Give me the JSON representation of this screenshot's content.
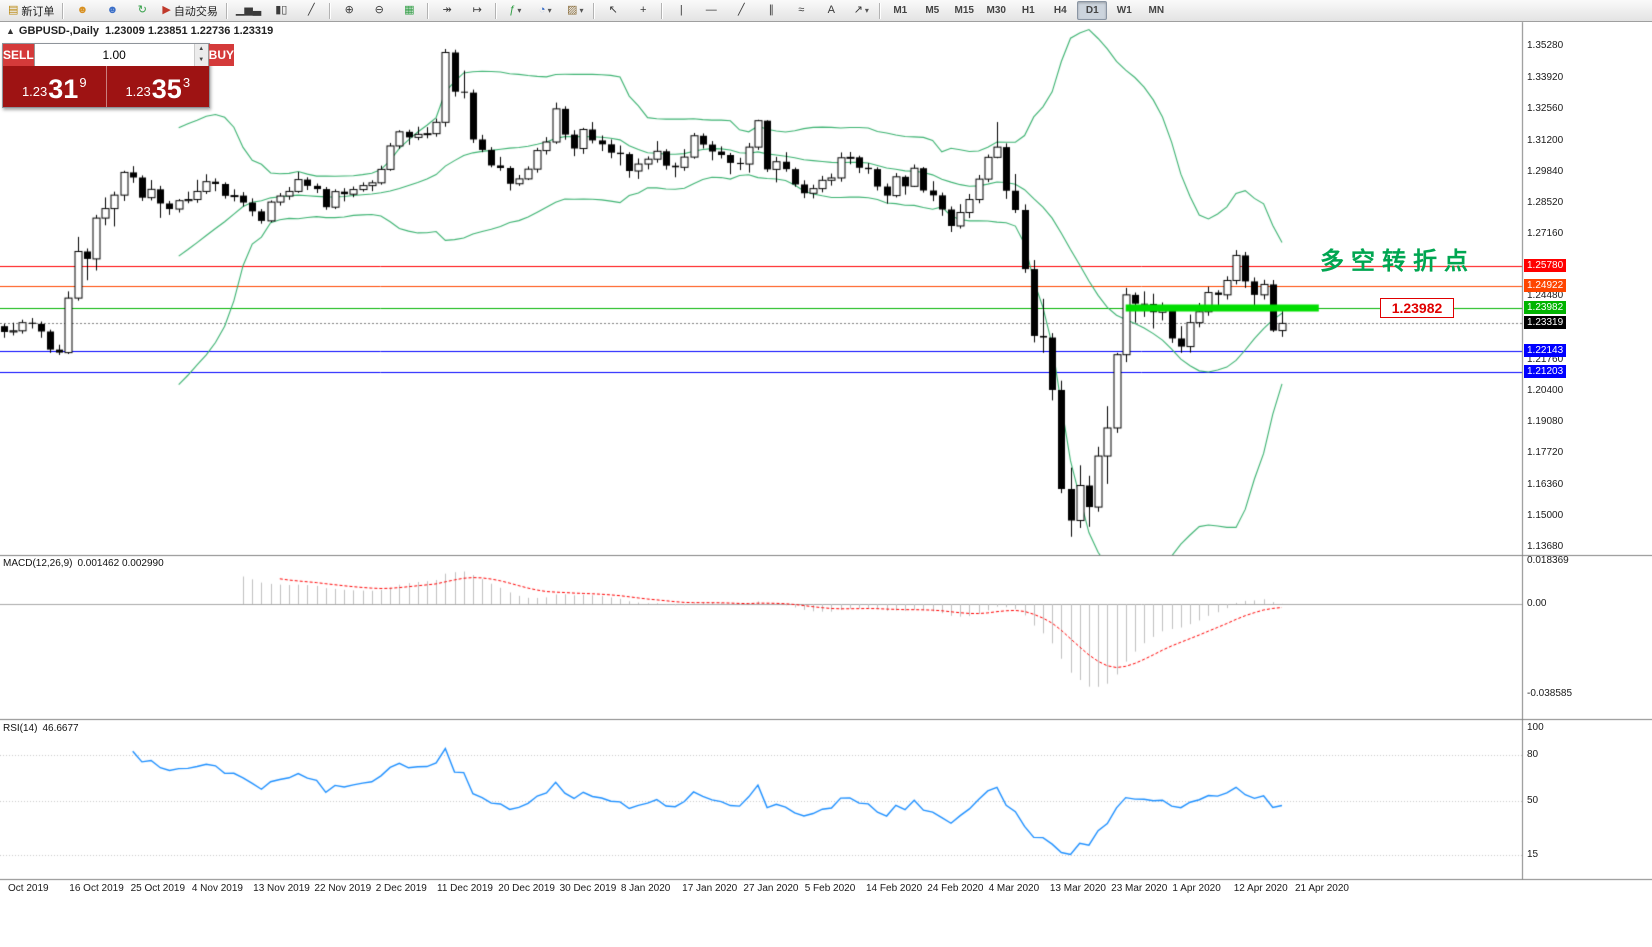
{
  "colors": {
    "button_red": "#d43a3a",
    "panel_red": "#9e1313",
    "bollinger_green": "#3cb371",
    "rsi_blue": "#1e90ff",
    "macd_signal_red": "#ff0000",
    "macd_histogram_silver": "#c0c0c0",
    "candle_up": "#ffffff",
    "candle_down": "#000000"
  },
  "toolbar": {
    "items": [
      {
        "name": "new-order-button",
        "icon": "order-ticket-icon",
        "glyph": "▤",
        "color": "#b8860b",
        "label": "新订单"
      },
      {
        "sep": true
      },
      {
        "name": "mql5-community-button",
        "icon": "community-icon",
        "glyph": "☻",
        "color": "#d89020"
      },
      {
        "name": "profile-button",
        "icon": "profile-icon",
        "glyph": "☻",
        "color": "#3a6ec8"
      },
      {
        "name": "data-window-button",
        "icon": "refresh-icon",
        "glyph": "↻",
        "color": "#2f9e44"
      },
      {
        "name": "autotrading-button",
        "icon": "autotrading-play-icon",
        "glyph": "▶",
        "color": "#c0392b",
        "label": "自动交易"
      },
      {
        "sep": true
      },
      {
        "name": "bar-chart-button",
        "icon": "bar-chart-icon",
        "glyph": "▁▅▃",
        "color": "#3a3a3a"
      },
      {
        "name": "candlestick-chart-button",
        "icon": "candlestick-icon",
        "glyph": "▮▯",
        "color": "#3a3a3a"
      },
      {
        "name": "line-chart-button",
        "icon": "line-chart-icon",
        "glyph": "╱",
        "color": "#3a3a3a"
      },
      {
        "sep": true
      },
      {
        "name": "zoom-in-button",
        "icon": "zoom-in-icon",
        "glyph": "⊕",
        "color": "#3a3a3a"
      },
      {
        "name": "zoom-out-button",
        "icon": "zoom-out-icon",
        "glyph": "⊖",
        "color": "#3a3a3a"
      },
      {
        "name": "tile-windows-button",
        "icon": "tile-windows-icon",
        "glyph": "▦",
        "color": "#2f9e44"
      },
      {
        "sep": true
      },
      {
        "name": "auto-scroll-button",
        "icon": "auto-scroll-icon",
        "glyph": "↠",
        "color": "#3a3a3a"
      },
      {
        "name": "chart-shift-button",
        "icon": "chart-shift-icon",
        "glyph": "↦",
        "color": "#3a3a3a"
      },
      {
        "sep": true
      },
      {
        "name": "indicators-button",
        "icon": "indicators-fx-icon",
        "glyph": "ƒ",
        "color": "#2f9e44",
        "caret": true
      },
      {
        "name": "periods-button",
        "icon": "clock-icon",
        "glyph": "◔",
        "color": "#3a6ec8",
        "caret": true
      },
      {
        "name": "templates-button",
        "icon": "template-icon",
        "glyph": "▨",
        "color": "#8a6d3b",
        "caret": true
      },
      {
        "sep": true
      },
      {
        "name": "cursor-button",
        "icon": "cursor-icon",
        "glyph": "↖",
        "color": "#3a3a3a"
      },
      {
        "name": "crosshair-button",
        "icon": "crosshair-icon",
        "glyph": "+",
        "color": "#3a3a3a"
      },
      {
        "sep": true
      },
      {
        "name": "vertical-line-button",
        "icon": "vertical-line-icon",
        "glyph": "|",
        "color": "#3a3a3a"
      },
      {
        "name": "horizontal-line-button",
        "icon": "horizontal-line-icon",
        "glyph": "―",
        "color": "#3a3a3a"
      },
      {
        "name": "trendline-button",
        "icon": "trendline-icon",
        "glyph": "╱",
        "color": "#3a3a3a"
      },
      {
        "name": "channel-button",
        "icon": "equidistant-channel-icon",
        "glyph": "∥",
        "color": "#3a3a3a"
      },
      {
        "name": "fibonacci-button",
        "icon": "fibonacci-icon",
        "glyph": "≈",
        "color": "#3a3a3a"
      },
      {
        "name": "text-label-button",
        "icon": "text-icon",
        "glyph": "A",
        "color": "#3a3a3a"
      },
      {
        "name": "arrow-objects-button",
        "icon": "arrow-objects-icon",
        "glyph": "↗",
        "color": "#3a3a3a",
        "caret": true
      },
      {
        "sep": true
      }
    ],
    "timeframes": [
      "M1",
      "M5",
      "M15",
      "M30",
      "H1",
      "H4",
      "D1",
      "W1",
      "MN"
    ],
    "active_timeframe": "D1"
  },
  "chart": {
    "toggle": "▲",
    "symbol": "GBPUSD-,Daily",
    "ohlc": "1.23009 1.23851 1.22736 1.23319"
  },
  "one_click": {
    "sell_label": "SELL",
    "buy_label": "BUY",
    "volume": "1.00",
    "sell": {
      "base": "1.23",
      "pips": "31",
      "pt": "9"
    },
    "buy": {
      "base": "1.23",
      "pips": "35",
      "pt": "3"
    }
  },
  "price_axis": {
    "ticks": [
      "1.35280",
      "1.33920",
      "1.32560",
      "1.31200",
      "1.29840",
      "1.28520",
      "1.27160",
      "1.24480",
      "1.21760",
      "1.20400",
      "1.19080",
      "1.17720",
      "1.16360",
      "1.15000",
      "1.13680"
    ],
    "levels": [
      {
        "label": "1.25780",
        "color": "#ff0000",
        "style": "solid"
      },
      {
        "label": "1.24922",
        "color": "#ff4500",
        "style": "solid"
      },
      {
        "label": "1.23982",
        "color": "#00b400",
        "style": "solid"
      },
      {
        "label": "1.23319",
        "color": "#000000",
        "style": "dot",
        "line_color": "#808080"
      },
      {
        "label": "1.22143",
        "color": "#0000ff",
        "style": "solid"
      },
      {
        "label": "1.21203",
        "color": "#0000ff",
        "style": "solid"
      }
    ]
  },
  "date_axis": [
    "Oct 2019",
    "16 Oct 2019",
    "25 Oct 2019",
    "4 Nov 2019",
    "13 Nov 2019",
    "22 Nov 2019",
    "2 Dec 2019",
    "11 Dec 2019",
    "20 Dec 2019",
    "30 Dec 2019",
    "8 Jan 2020",
    "17 Jan 2020",
    "27 Jan 2020",
    "5 Feb 2020",
    "14 Feb 2020",
    "24 Feb 2020",
    "4 Mar 2020",
    "13 Mar 2020",
    "23 Mar 2020",
    "1 Apr 2020",
    "12 Apr 2020",
    "21 Apr 2020"
  ],
  "panes": {
    "macd": {
      "label": "MACD(12,26,9)",
      "values": "0.001462 0.002990",
      "axis": [
        "0.018369",
        "0.00",
        "-0.038585"
      ]
    },
    "rsi": {
      "label": "RSI(14)",
      "value": "46.6677",
      "axis": [
        "100",
        "80",
        "50",
        "15"
      ],
      "levels": [
        80,
        50,
        15
      ]
    }
  },
  "objects": {
    "support_segment": {
      "price": 1.23982,
      "from_bar": 122,
      "to_bar": 143,
      "color": "#00dd00",
      "width": 7
    },
    "annotation": {
      "text": "多空转折点",
      "color": "#00a651"
    },
    "callout": {
      "text": "1.23982",
      "color": "#e00000"
    }
  },
  "chart_data": {
    "type": "candlestick",
    "symbol": "GBPUSD",
    "period": "Daily",
    "x_range": [
      "Oct 2019",
      "21 Apr 2020"
    ],
    "price_range": [
      1.1342,
      1.3597
    ],
    "last_ohlc": {
      "open": 1.23009,
      "high": 1.23851,
      "low": 1.22736,
      "close": 1.23319
    },
    "indicators": {
      "bollinger": {
        "period": 20,
        "deviation": 2,
        "color": "#3cb371"
      },
      "macd": {
        "fast": 12,
        "slow": 26,
        "signal": 9,
        "current_main": 0.001462,
        "current_signal": 0.00299,
        "scale_max": 0.018369,
        "scale_min": -0.038585
      },
      "rsi": {
        "period": 14,
        "current": 46.6677
      }
    },
    "candles": [
      [
        1.232,
        1.233,
        1.227,
        1.2295
      ],
      [
        1.2295,
        1.2335,
        1.228,
        1.23
      ],
      [
        1.23,
        1.2348,
        1.2288,
        1.2335
      ],
      [
        1.2335,
        1.2355,
        1.231,
        1.233
      ],
      [
        1.233,
        1.234,
        1.227,
        1.2297
      ],
      [
        1.2297,
        1.2305,
        1.2205,
        1.2219
      ],
      [
        1.2219,
        1.224,
        1.2196,
        1.2206
      ],
      [
        1.2206,
        1.247,
        1.22,
        1.2441
      ],
      [
        1.2441,
        1.2705,
        1.243,
        1.2642
      ],
      [
        1.2642,
        1.2655,
        1.2518,
        1.261
      ],
      [
        1.261,
        1.28,
        1.256,
        1.2786
      ],
      [
        1.2786,
        1.2875,
        1.2755,
        1.2827
      ],
      [
        1.2827,
        1.29,
        1.275,
        1.2885
      ],
      [
        1.2885,
        1.299,
        1.286,
        1.2983
      ],
      [
        1.2983,
        1.301,
        1.2938,
        1.2961
      ],
      [
        1.2961,
        1.297,
        1.286,
        1.2874
      ],
      [
        1.2874,
        1.295,
        1.2862,
        1.291
      ],
      [
        1.291,
        1.2925,
        1.2787,
        1.2849
      ],
      [
        1.2849,
        1.286,
        1.28,
        1.2825
      ],
      [
        1.2825,
        1.2868,
        1.281,
        1.2861
      ],
      [
        1.2861,
        1.29,
        1.285,
        1.2866
      ],
      [
        1.2866,
        1.2951,
        1.2852,
        1.2901
      ],
      [
        1.2901,
        1.2975,
        1.289,
        1.2943
      ],
      [
        1.2943,
        1.2957,
        1.2902,
        1.2933
      ],
      [
        1.2933,
        1.294,
        1.287,
        1.2882
      ],
      [
        1.2882,
        1.291,
        1.2858,
        1.2883
      ],
      [
        1.2883,
        1.2898,
        1.2836,
        1.2853
      ],
      [
        1.2853,
        1.2871,
        1.2794,
        1.2815
      ],
      [
        1.2815,
        1.2825,
        1.2762,
        1.2774
      ],
      [
        1.2774,
        1.2862,
        1.2768,
        1.2855
      ],
      [
        1.2855,
        1.2894,
        1.284,
        1.2881
      ],
      [
        1.2881,
        1.292,
        1.2865,
        1.2901
      ],
      [
        1.2901,
        1.2985,
        1.2895,
        1.2952
      ],
      [
        1.2952,
        1.2962,
        1.2907,
        1.2925
      ],
      [
        1.2925,
        1.2935,
        1.2894,
        1.2911
      ],
      [
        1.2911,
        1.292,
        1.2822,
        1.2833
      ],
      [
        1.2833,
        1.291,
        1.2825,
        1.29
      ],
      [
        1.29,
        1.2915,
        1.2858,
        1.2889
      ],
      [
        1.2889,
        1.2922,
        1.2876,
        1.2909
      ],
      [
        1.2909,
        1.294,
        1.29,
        1.2926
      ],
      [
        1.2926,
        1.2949,
        1.2902,
        1.2938
      ],
      [
        1.2938,
        1.3012,
        1.293,
        1.2996
      ],
      [
        1.2996,
        1.311,
        1.299,
        1.3097
      ],
      [
        1.3097,
        1.3165,
        1.3085,
        1.3158
      ],
      [
        1.3158,
        1.3167,
        1.3102,
        1.3134
      ],
      [
        1.3134,
        1.318,
        1.3122,
        1.3147
      ],
      [
        1.3147,
        1.3178,
        1.313,
        1.315
      ],
      [
        1.315,
        1.3215,
        1.3137,
        1.3199
      ],
      [
        1.3199,
        1.3515,
        1.318,
        1.35
      ],
      [
        1.35,
        1.3512,
        1.331,
        1.3331
      ],
      [
        1.3331,
        1.3422,
        1.3302,
        1.3327
      ],
      [
        1.3327,
        1.334,
        1.311,
        1.3125
      ],
      [
        1.3125,
        1.3145,
        1.307,
        1.308
      ],
      [
        1.308,
        1.3092,
        1.3005,
        1.3013
      ],
      [
        1.3013,
        1.305,
        1.299,
        1.3002
      ],
      [
        1.3002,
        1.301,
        1.2905,
        1.2934
      ],
      [
        1.2934,
        1.2972,
        1.2925,
        1.2955
      ],
      [
        1.2955,
        1.3009,
        1.295,
        1.2997
      ],
      [
        1.2997,
        1.3089,
        1.2982,
        1.3077
      ],
      [
        1.3077,
        1.3135,
        1.306,
        1.3114
      ],
      [
        1.3114,
        1.3284,
        1.3106,
        1.3257
      ],
      [
        1.3257,
        1.3268,
        1.3124,
        1.3146
      ],
      [
        1.3146,
        1.3165,
        1.3053,
        1.3086
      ],
      [
        1.3086,
        1.3175,
        1.3063,
        1.3168
      ],
      [
        1.3168,
        1.32,
        1.3108,
        1.3121
      ],
      [
        1.3121,
        1.3142,
        1.3075,
        1.3104
      ],
      [
        1.3104,
        1.3125,
        1.3044,
        1.3068
      ],
      [
        1.3068,
        1.3099,
        1.3013,
        1.3062
      ],
      [
        1.3062,
        1.307,
        1.296,
        1.2989
      ],
      [
        1.2989,
        1.3043,
        1.2955,
        1.3019
      ],
      [
        1.3019,
        1.3052,
        1.2996,
        1.304
      ],
      [
        1.304,
        1.3118,
        1.3025,
        1.3074
      ],
      [
        1.3074,
        1.3083,
        1.2995,
        1.3012
      ],
      [
        1.3012,
        1.3025,
        1.2962,
        1.3005
      ],
      [
        1.3005,
        1.3083,
        1.299,
        1.3049
      ],
      [
        1.3049,
        1.3153,
        1.3042,
        1.3141
      ],
      [
        1.3141,
        1.3151,
        1.3086,
        1.3103
      ],
      [
        1.3103,
        1.3118,
        1.3035,
        1.3073
      ],
      [
        1.3073,
        1.3095,
        1.3043,
        1.3058
      ],
      [
        1.3058,
        1.3067,
        1.2975,
        1.3024
      ],
      [
        1.3024,
        1.3046,
        1.2993,
        1.3019
      ],
      [
        1.3019,
        1.311,
        1.2982,
        1.3092
      ],
      [
        1.3092,
        1.321,
        1.308,
        1.3206
      ],
      [
        1.3206,
        1.3208,
        1.2985,
        1.2996
      ],
      [
        1.2996,
        1.305,
        1.294,
        1.3029
      ],
      [
        1.3029,
        1.307,
        1.2986,
        1.2997
      ],
      [
        1.2997,
        1.3004,
        1.2921,
        1.2931
      ],
      [
        1.2931,
        1.2949,
        1.2872,
        1.2893
      ],
      [
        1.2893,
        1.293,
        1.2871,
        1.2913
      ],
      [
        1.2913,
        1.2968,
        1.2897,
        1.2949
      ],
      [
        1.2949,
        1.2978,
        1.2926,
        1.2959
      ],
      [
        1.2959,
        1.3069,
        1.2943,
        1.3046
      ],
      [
        1.3046,
        1.3071,
        1.3018,
        1.3048
      ],
      [
        1.3048,
        1.3055,
        1.298,
        1.3003
      ],
      [
        1.3003,
        1.3023,
        1.2977,
        1.2997
      ],
      [
        1.2997,
        1.3005,
        1.2905,
        1.2922
      ],
      [
        1.2922,
        1.2935,
        1.2848,
        1.2883
      ],
      [
        1.2883,
        1.298,
        1.2875,
        1.2964
      ],
      [
        1.2964,
        1.297,
        1.2887,
        1.2923
      ],
      [
        1.2923,
        1.3017,
        1.292,
        1.3001
      ],
      [
        1.3001,
        1.3006,
        1.2896,
        1.2905
      ],
      [
        1.2905,
        1.2945,
        1.2859,
        1.2884
      ],
      [
        1.2884,
        1.2896,
        1.2796,
        1.2823
      ],
      [
        1.2823,
        1.2836,
        1.2726,
        1.2752
      ],
      [
        1.2752,
        1.2846,
        1.2741,
        1.281
      ],
      [
        1.281,
        1.289,
        1.2786,
        1.2866
      ],
      [
        1.2866,
        1.2972,
        1.285,
        1.2954
      ],
      [
        1.2954,
        1.306,
        1.2941,
        1.3048
      ],
      [
        1.3048,
        1.32,
        1.3044,
        1.3092
      ],
      [
        1.3092,
        1.3108,
        1.2869,
        1.2904
      ],
      [
        1.2904,
        1.2976,
        1.2808,
        1.2821
      ],
      [
        1.2821,
        1.2845,
        1.255,
        1.2566
      ],
      [
        1.2566,
        1.2605,
        1.225,
        1.2278
      ],
      [
        1.2278,
        1.2438,
        1.2205,
        1.2271
      ],
      [
        1.2271,
        1.229,
        1.2,
        1.2045
      ],
      [
        1.2045,
        1.2085,
        1.16,
        1.1618
      ],
      [
        1.1618,
        1.171,
        1.1412,
        1.1482
      ],
      [
        1.1482,
        1.172,
        1.145,
        1.1633
      ],
      [
        1.1633,
        1.1675,
        1.1455,
        1.154
      ],
      [
        1.154,
        1.18,
        1.152,
        1.176
      ],
      [
        1.176,
        1.1975,
        1.164,
        1.1881
      ],
      [
        1.1881,
        1.2205,
        1.186,
        1.2197
      ],
      [
        1.2197,
        1.2485,
        1.2165,
        1.2455
      ],
      [
        1.2455,
        1.2465,
        1.2335,
        1.2417
      ],
      [
        1.2417,
        1.247,
        1.236,
        1.2416
      ],
      [
        1.2416,
        1.246,
        1.231,
        1.238
      ],
      [
        1.238,
        1.2422,
        1.2345,
        1.2393
      ],
      [
        1.2393,
        1.2405,
        1.2248,
        1.2267
      ],
      [
        1.2267,
        1.232,
        1.2205,
        1.2232
      ],
      [
        1.2232,
        1.237,
        1.2206,
        1.2335
      ],
      [
        1.2335,
        1.242,
        1.2315,
        1.2382
      ],
      [
        1.2382,
        1.249,
        1.2365,
        1.2465
      ],
      [
        1.2465,
        1.2475,
        1.2405,
        1.2455
      ],
      [
        1.2455,
        1.2535,
        1.2435,
        1.2517
      ],
      [
        1.2517,
        1.2648,
        1.25,
        1.2625
      ],
      [
        1.2625,
        1.264,
        1.2485,
        1.2513
      ],
      [
        1.2513,
        1.253,
        1.241,
        1.2455
      ],
      [
        1.2455,
        1.252,
        1.2435,
        1.25
      ],
      [
        1.25,
        1.2519,
        1.2295,
        1.2301
      ],
      [
        1.2301,
        1.2385,
        1.2274,
        1.2332
      ]
    ]
  }
}
